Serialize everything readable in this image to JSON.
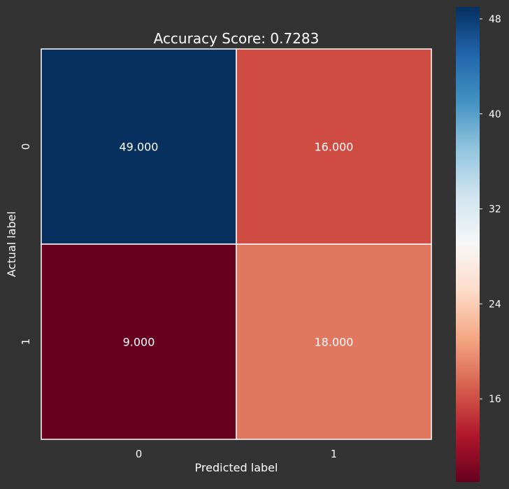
{
  "chart_data": {
    "type": "heatmap",
    "title": "Accuracy Score: 0.7283",
    "xlabel": "Predicted label",
    "ylabel": "Actual label",
    "x_categories": [
      "0",
      "1"
    ],
    "y_categories": [
      "0",
      "1"
    ],
    "values": [
      [
        49,
        16
      ],
      [
        9,
        18
      ]
    ],
    "annotations": [
      [
        "49.000",
        "16.000"
      ],
      [
        "9.000",
        "18.000"
      ]
    ],
    "colormap": "RdBu",
    "color_range": [
      9,
      49
    ],
    "colorbar_ticks": [
      {
        "value": 16,
        "label": "16"
      },
      {
        "value": 24,
        "label": "24"
      },
      {
        "value": 32,
        "label": "32"
      },
      {
        "value": 40,
        "label": "40"
      },
      {
        "value": 48,
        "label": "48"
      }
    ],
    "colorbar_stops": [
      {
        "t": 0.0,
        "color": "#67001f"
      },
      {
        "t": 0.1,
        "color": "#b2182b"
      },
      {
        "t": 0.2,
        "color": "#d6604d"
      },
      {
        "t": 0.3,
        "color": "#f4a582"
      },
      {
        "t": 0.4,
        "color": "#fddbc7"
      },
      {
        "t": 0.5,
        "color": "#f7f7f7"
      },
      {
        "t": 0.6,
        "color": "#d1e5f0"
      },
      {
        "t": 0.7,
        "color": "#92c5de"
      },
      {
        "t": 0.8,
        "color": "#4393c3"
      },
      {
        "t": 0.9,
        "color": "#2166ac"
      },
      {
        "t": 1.0,
        "color": "#053061"
      }
    ],
    "cell_colors": [
      [
        "#08305f",
        "#cf4c43"
      ],
      [
        "#67001f",
        "#e0775e"
      ]
    ],
    "background_color": "#333333",
    "text_color": "#ffffff",
    "gridline_color": "#ffffff"
  }
}
